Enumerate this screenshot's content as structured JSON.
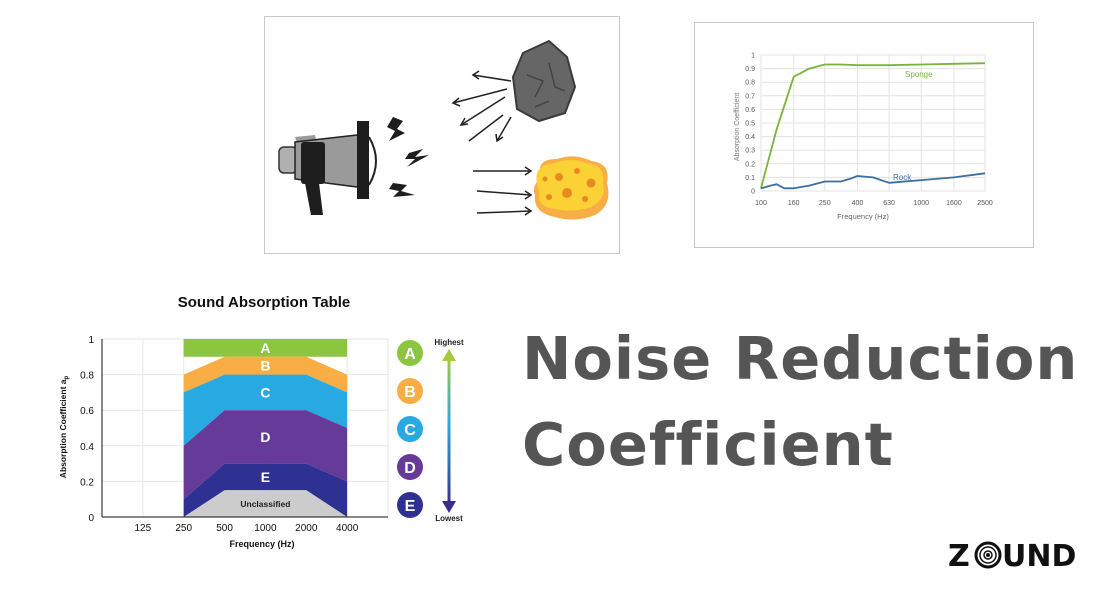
{
  "headline": {
    "line1": "Noise Reduction",
    "line2": "Coefficient"
  },
  "logo": {
    "text": "ZOUND",
    "parts": [
      "Z",
      "UND"
    ]
  },
  "colors": {
    "sponge": "#7ab33c",
    "rock": "#3c6e9e",
    "class_a": "#8cc53f",
    "class_b": "#f8ae45",
    "class_c": "#29a9e1",
    "class_d": "#663a99",
    "class_e": "#2e3192",
    "unclassified": "#cccccc",
    "headline": "#555555"
  },
  "chart_data": [
    {
      "type": "line",
      "title": "",
      "xlabel": "Frequency (Hz)",
      "ylabel": "Absorption Coefficient",
      "x": [
        "100",
        "160",
        "250",
        "400",
        "630",
        "1000",
        "1600",
        "2500"
      ],
      "yticks": [
        "0",
        "0.1",
        "0.2",
        "0.3",
        "0.4",
        "0.5",
        "0.6",
        "0.7",
        "0.8",
        "0.9",
        "1"
      ],
      "ylim": [
        0,
        1
      ],
      "grid": true,
      "series": [
        {
          "name": "Sponge",
          "x": [
            100,
            125,
            160,
            200,
            250,
            315,
            400,
            630,
            1000,
            1600,
            2500
          ],
          "values": [
            0.02,
            0.45,
            0.84,
            0.9,
            0.93,
            0.93,
            0.925,
            0.925,
            0.93,
            0.935,
            0.94
          ]
        },
        {
          "name": "Rock",
          "x": [
            100,
            115,
            125,
            140,
            160,
            200,
            250,
            315,
            360,
            400,
            500,
            630,
            1000,
            1600,
            2500
          ],
          "values": [
            0.02,
            0.04,
            0.05,
            0.02,
            0.02,
            0.04,
            0.07,
            0.07,
            0.09,
            0.11,
            0.1,
            0.06,
            0.08,
            0.1,
            0.13
          ]
        }
      ]
    },
    {
      "type": "area",
      "title": "Sound Absorption Table",
      "xlabel": "Frequency (Hz)",
      "ylabel_main": "Absorption Coefficient a",
      "ylabel_sub": "p",
      "x": [
        "125",
        "250",
        "500",
        "1000",
        "2000",
        "4000"
      ],
      "yticks": [
        "0",
        "0.2",
        "0.4",
        "0.6",
        "0.8",
        "1"
      ],
      "ylim": [
        0,
        1
      ],
      "grid": true,
      "band_x": [
        250,
        500,
        1000,
        2000,
        4000
      ],
      "bands": [
        {
          "label": "A",
          "lower": [
            0.9,
            0.9,
            0.9,
            0.9,
            0.9
          ],
          "upper": [
            1,
            1,
            1,
            1,
            1
          ]
        },
        {
          "label": "B",
          "lower": [
            0.7,
            0.8,
            0.8,
            0.8,
            0.7
          ],
          "upper": [
            0.8,
            0.9,
            0.9,
            0.9,
            0.8
          ]
        },
        {
          "label": "C",
          "lower": [
            0.4,
            0.6,
            0.6,
            0.6,
            0.5
          ],
          "upper": [
            0.7,
            0.8,
            0.8,
            0.8,
            0.7
          ]
        },
        {
          "label": "D",
          "lower": [
            0.1,
            0.3,
            0.3,
            0.3,
            0.2
          ],
          "upper": [
            0.4,
            0.6,
            0.6,
            0.6,
            0.5
          ]
        },
        {
          "label": "E",
          "lower": [
            0,
            0.15,
            0.15,
            0.15,
            0
          ],
          "upper": [
            0.1,
            0.3,
            0.3,
            0.3,
            0.2
          ]
        },
        {
          "label": "Unclassified",
          "lower": [
            0,
            0,
            0,
            0,
            0
          ],
          "upper": [
            0,
            0.15,
            0.15,
            0.15,
            0
          ]
        }
      ],
      "legend": {
        "items": [
          "A",
          "B",
          "C",
          "D",
          "E"
        ],
        "scale_top": "Highest",
        "scale_bottom": "Lowest",
        "placement": "right"
      }
    }
  ]
}
